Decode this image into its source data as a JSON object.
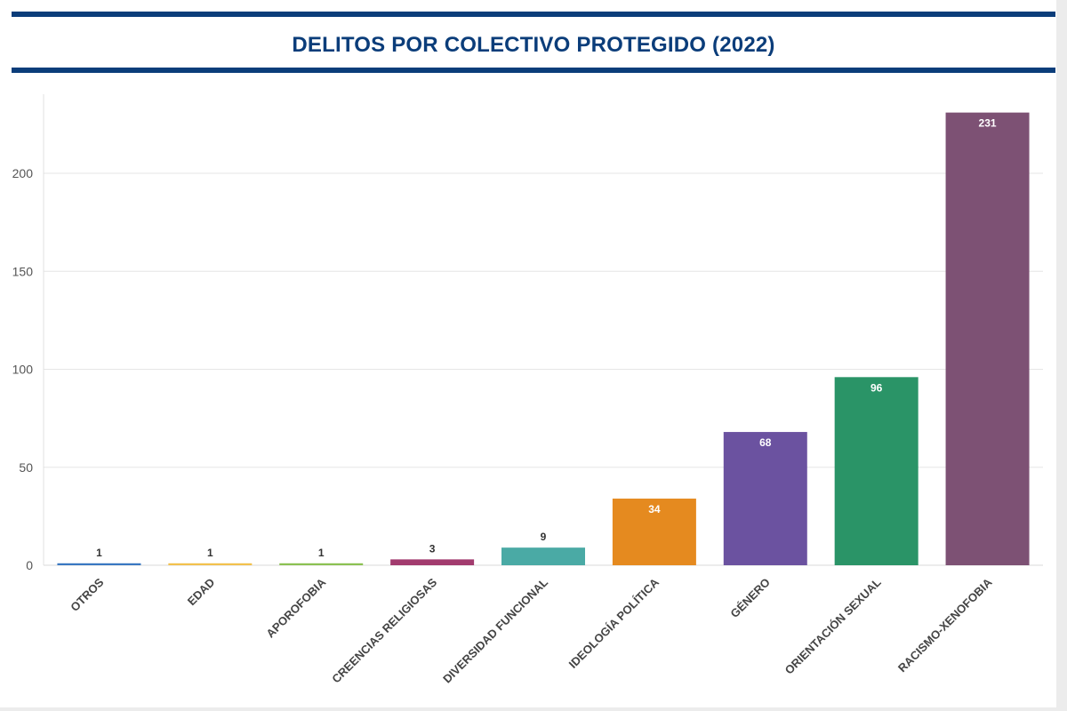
{
  "chart_data": {
    "type": "bar",
    "title": "DELITOS POR COLECTIVO PROTEGIDO (2022)",
    "categories": [
      "OTROS",
      "EDAD",
      "APOROFOBIA",
      "CREENCIAS RELIGIOSAS",
      "DIVERSIDAD FUNCIONAL",
      "IDEOLOGÍA POLÍTICA",
      "GÉNERO",
      "ORIENTACIÓN SEXUAL",
      "RACISMO-XENOFOBIA"
    ],
    "values": [
      1,
      1,
      1,
      3,
      9,
      34,
      68,
      96,
      231
    ],
    "colors": [
      "#3a78c2",
      "#f2c14e",
      "#8cc152",
      "#a23b6e",
      "#4aaaa5",
      "#e58a1f",
      "#6b52a0",
      "#2a9467",
      "#7d5174"
    ],
    "ylim": [
      0,
      240
    ],
    "yticks": [
      0,
      50,
      100,
      150,
      200
    ],
    "xlabel": "",
    "ylabel": "",
    "grid": true,
    "legend": "none"
  }
}
